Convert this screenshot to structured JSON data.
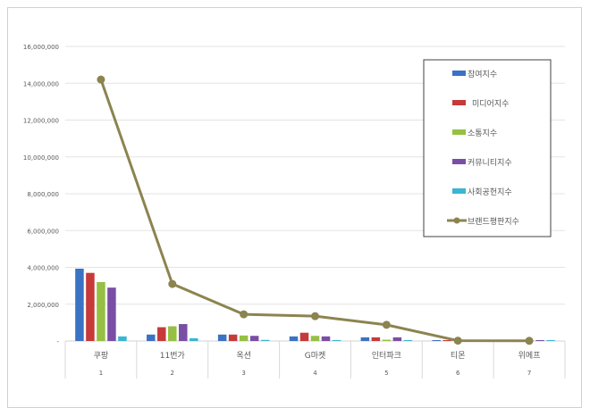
{
  "chart_data": {
    "type": "bar",
    "title": "",
    "categories": [
      "쿠팡",
      "11번가",
      "옥션",
      "G마켓",
      "인터파크",
      "티몬",
      "위메프"
    ],
    "category_numbers": [
      "1",
      "2",
      "3",
      "4",
      "5",
      "6",
      "7"
    ],
    "ylim": [
      0,
      16000000
    ],
    "yticks": [
      "-",
      "2,000,000",
      "4,000,000",
      "6,000,000",
      "8,000,000",
      "10,000,000",
      "12,000,000",
      "14,000,000",
      "16,000,000"
    ],
    "grid": true,
    "legend_position": "top-right",
    "series": [
      {
        "name": "참여지수",
        "type": "bar",
        "color": "#3a72c4",
        "values": [
          3930000,
          350000,
          350000,
          250000,
          200000,
          0,
          0
        ]
      },
      {
        "name": "미디어지수",
        "type": "bar",
        "color": "#c63a3a",
        "values": [
          3700000,
          750000,
          350000,
          450000,
          200000,
          0,
          0
        ]
      },
      {
        "name": "소통지수",
        "type": "bar",
        "color": "#95c043",
        "values": [
          3200000,
          800000,
          300000,
          280000,
          70000,
          0,
          0
        ]
      },
      {
        "name": "커뮤니티지수",
        "type": "bar",
        "color": "#7a4ea5",
        "values": [
          2900000,
          920000,
          280000,
          250000,
          200000,
          0,
          0
        ]
      },
      {
        "name": "사회공헌지수",
        "type": "bar",
        "color": "#3bb5d0",
        "values": [
          250000,
          150000,
          60000,
          40000,
          50000,
          0,
          0
        ]
      },
      {
        "name": "브랜드평판지수",
        "type": "line",
        "color": "#8c8450",
        "values": [
          14200000,
          3100000,
          1450000,
          1350000,
          880000,
          20000,
          10000
        ]
      }
    ]
  }
}
